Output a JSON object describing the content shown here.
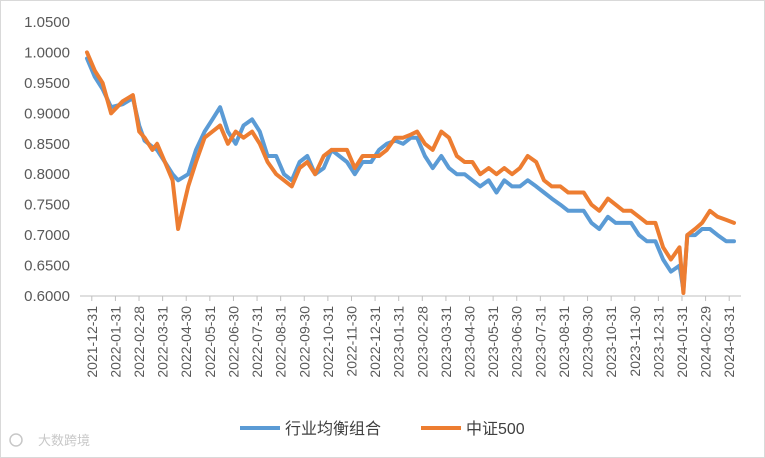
{
  "chart_data": {
    "type": "line",
    "title": "",
    "xlabel": "",
    "ylabel": "",
    "ylim": [
      0.6,
      1.05
    ],
    "y_ticks": [
      "0.6000",
      "0.6500",
      "0.7000",
      "0.7500",
      "0.8000",
      "0.8500",
      "0.9000",
      "0.9500",
      "1.0000",
      "1.0500"
    ],
    "x_ticks": [
      "2021-12-31",
      "2022-01-31",
      "2022-02-28",
      "2022-03-31",
      "2022-04-30",
      "2022-05-31",
      "2022-06-30",
      "2022-07-31",
      "2022-08-31",
      "2022-09-30",
      "2022-10-31",
      "2022-11-30",
      "2022-12-31",
      "2023-01-31",
      "2023-02-28",
      "2023-03-31",
      "2023-04-30",
      "2023-05-31",
      "2023-06-30",
      "2023-07-31",
      "2023-08-31",
      "2023-09-30",
      "2023-10-31",
      "2023-11-30",
      "2023-12-31",
      "2024-01-31",
      "2024-02-29",
      "2024-03-31"
    ],
    "grid": false,
    "legend_position": "bottom",
    "series": [
      {
        "name": "行业均衡组合",
        "color": "#5b9bd5",
        "x": [
          "2021-12-31",
          "2022-01-10",
          "2022-01-20",
          "2022-01-31",
          "2022-02-15",
          "2022-02-28",
          "2022-03-08",
          "2022-03-15",
          "2022-03-25",
          "2022-03-31",
          "2022-04-10",
          "2022-04-20",
          "2022-04-27",
          "2022-05-10",
          "2022-05-20",
          "2022-05-31",
          "2022-06-10",
          "2022-06-20",
          "2022-06-30",
          "2022-07-10",
          "2022-07-20",
          "2022-07-31",
          "2022-08-10",
          "2022-08-20",
          "2022-08-31",
          "2022-09-10",
          "2022-09-20",
          "2022-09-30",
          "2022-10-10",
          "2022-10-20",
          "2022-10-31",
          "2022-11-10",
          "2022-11-20",
          "2022-11-30",
          "2022-12-10",
          "2022-12-20",
          "2022-12-31",
          "2023-01-10",
          "2023-01-20",
          "2023-01-31",
          "2023-02-10",
          "2023-02-20",
          "2023-02-28",
          "2023-03-10",
          "2023-03-20",
          "2023-03-31",
          "2023-04-10",
          "2023-04-20",
          "2023-04-30",
          "2023-05-10",
          "2023-05-20",
          "2023-05-31",
          "2023-06-10",
          "2023-06-20",
          "2023-06-30",
          "2023-07-10",
          "2023-07-20",
          "2023-07-31",
          "2023-08-10",
          "2023-08-20",
          "2023-08-31",
          "2023-09-10",
          "2023-09-20",
          "2023-09-30",
          "2023-10-10",
          "2023-10-20",
          "2023-10-31",
          "2023-11-10",
          "2023-11-20",
          "2023-11-30",
          "2023-12-10",
          "2023-12-20",
          "2023-12-31",
          "2024-01-10",
          "2024-01-20",
          "2024-01-31",
          "2024-02-05",
          "2024-02-10",
          "2024-02-20",
          "2024-02-29",
          "2024-03-10",
          "2024-03-20",
          "2024-03-31",
          "2024-04-10"
        ],
        "values": [
          0.99,
          0.96,
          0.94,
          0.91,
          0.915,
          0.925,
          0.88,
          0.855,
          0.845,
          0.84,
          0.82,
          0.8,
          0.79,
          0.8,
          0.84,
          0.87,
          0.89,
          0.91,
          0.87,
          0.85,
          0.88,
          0.89,
          0.87,
          0.83,
          0.83,
          0.8,
          0.79,
          0.82,
          0.83,
          0.8,
          0.81,
          0.84,
          0.83,
          0.82,
          0.8,
          0.82,
          0.82,
          0.84,
          0.85,
          0.855,
          0.85,
          0.86,
          0.86,
          0.83,
          0.81,
          0.83,
          0.81,
          0.8,
          0.8,
          0.79,
          0.78,
          0.79,
          0.77,
          0.79,
          0.78,
          0.78,
          0.79,
          0.78,
          0.77,
          0.76,
          0.75,
          0.74,
          0.74,
          0.74,
          0.72,
          0.71,
          0.73,
          0.72,
          0.72,
          0.72,
          0.7,
          0.69,
          0.69,
          0.66,
          0.64,
          0.65,
          0.61,
          0.7,
          0.7,
          0.71,
          0.71,
          0.7,
          0.69,
          0.69
        ]
      },
      {
        "name": "中证500",
        "color": "#ed7d31",
        "x": [
          "2021-12-31",
          "2022-01-10",
          "2022-01-20",
          "2022-01-31",
          "2022-02-15",
          "2022-02-28",
          "2022-03-08",
          "2022-03-15",
          "2022-03-25",
          "2022-03-31",
          "2022-04-10",
          "2022-04-20",
          "2022-04-27",
          "2022-05-10",
          "2022-05-20",
          "2022-05-31",
          "2022-06-10",
          "2022-06-20",
          "2022-06-30",
          "2022-07-10",
          "2022-07-20",
          "2022-07-31",
          "2022-08-10",
          "2022-08-20",
          "2022-08-31",
          "2022-09-10",
          "2022-09-20",
          "2022-09-30",
          "2022-10-10",
          "2022-10-20",
          "2022-10-31",
          "2022-11-10",
          "2022-11-20",
          "2022-11-30",
          "2022-12-10",
          "2022-12-20",
          "2022-12-31",
          "2023-01-10",
          "2023-01-20",
          "2023-01-31",
          "2023-02-10",
          "2023-02-20",
          "2023-02-28",
          "2023-03-10",
          "2023-03-20",
          "2023-03-31",
          "2023-04-10",
          "2023-04-20",
          "2023-04-30",
          "2023-05-10",
          "2023-05-20",
          "2023-05-31",
          "2023-06-10",
          "2023-06-20",
          "2023-06-30",
          "2023-07-10",
          "2023-07-20",
          "2023-07-31",
          "2023-08-10",
          "2023-08-20",
          "2023-08-31",
          "2023-09-10",
          "2023-09-20",
          "2023-09-30",
          "2023-10-10",
          "2023-10-20",
          "2023-10-31",
          "2023-11-10",
          "2023-11-20",
          "2023-11-30",
          "2023-12-10",
          "2023-12-20",
          "2023-12-31",
          "2024-01-10",
          "2024-01-20",
          "2024-01-31",
          "2024-02-05",
          "2024-02-10",
          "2024-02-20",
          "2024-02-29",
          "2024-03-10",
          "2024-03-20",
          "2024-03-31",
          "2024-04-10"
        ],
        "values": [
          1.0,
          0.97,
          0.95,
          0.9,
          0.92,
          0.93,
          0.87,
          0.86,
          0.84,
          0.85,
          0.82,
          0.79,
          0.71,
          0.78,
          0.82,
          0.86,
          0.87,
          0.88,
          0.85,
          0.87,
          0.86,
          0.87,
          0.85,
          0.82,
          0.8,
          0.79,
          0.78,
          0.81,
          0.82,
          0.8,
          0.83,
          0.84,
          0.84,
          0.84,
          0.81,
          0.83,
          0.83,
          0.83,
          0.84,
          0.86,
          0.86,
          0.865,
          0.87,
          0.85,
          0.84,
          0.87,
          0.86,
          0.83,
          0.82,
          0.82,
          0.8,
          0.81,
          0.8,
          0.81,
          0.8,
          0.81,
          0.83,
          0.82,
          0.79,
          0.78,
          0.78,
          0.77,
          0.77,
          0.77,
          0.75,
          0.74,
          0.76,
          0.75,
          0.74,
          0.74,
          0.73,
          0.72,
          0.72,
          0.68,
          0.66,
          0.68,
          0.605,
          0.7,
          0.71,
          0.72,
          0.74,
          0.73,
          0.725,
          0.72
        ]
      }
    ]
  },
  "watermark_text": "大数跨境"
}
